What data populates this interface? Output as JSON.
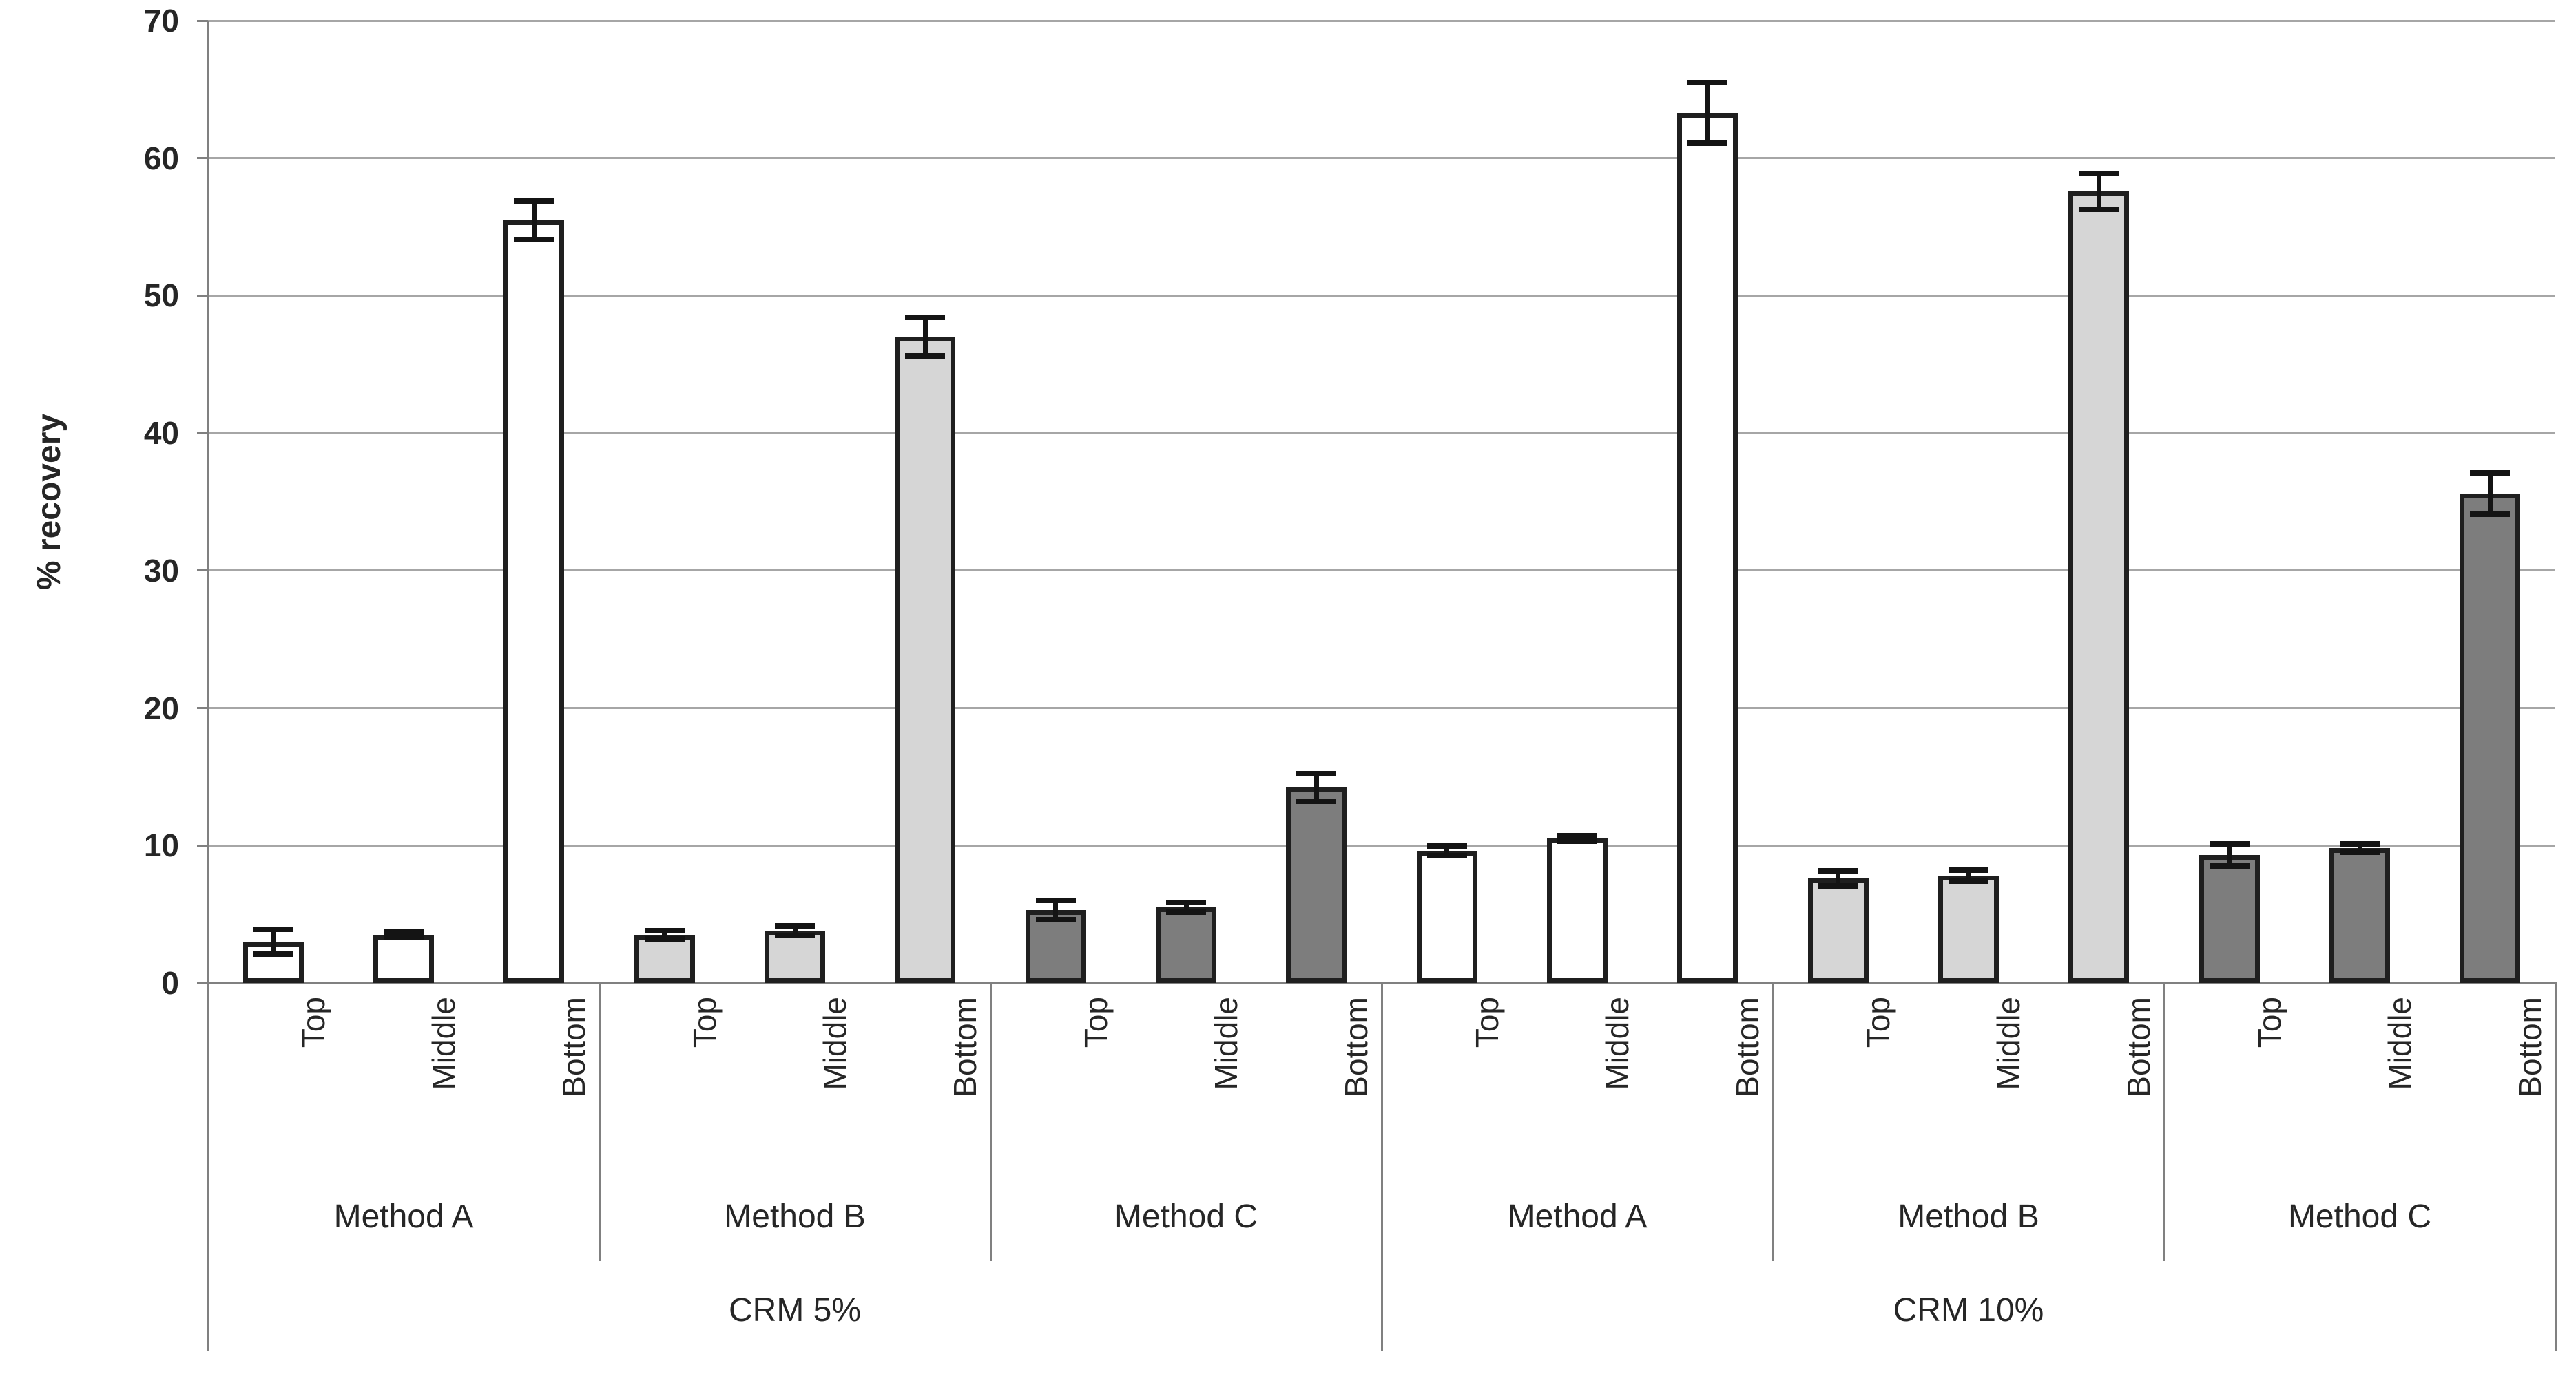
{
  "chart_data": {
    "type": "bar",
    "title": "",
    "xlabel": "",
    "ylabel": "% recovery",
    "ylim": [
      0,
      70
    ],
    "yticks": [
      0,
      10,
      20,
      30,
      40,
      50,
      60,
      70
    ],
    "grid": true,
    "legend_position": "none",
    "axis_levels": [
      "position",
      "method",
      "crm"
    ],
    "position_labels": [
      "Top",
      "Middle",
      "Bottom"
    ],
    "colors": {
      "method_a_fill": "#ffffff",
      "method_b_fill": "#d6d6d6",
      "method_c_fill": "#7d7d7d",
      "bar_border": "#1f1f1f",
      "error_bar": "#141414",
      "gridline": "#a6a6a6",
      "axis": "#808080",
      "text": "#262626"
    },
    "groups": [
      {
        "crm": "CRM 5%",
        "methods": [
          {
            "name": "Method A",
            "fill": "#ffffff",
            "bars": [
              {
                "label": "Top",
                "value": 3.0,
                "error": 0.9
              },
              {
                "label": "Middle",
                "value": 3.5,
                "error": 0.2
              },
              {
                "label": "Bottom",
                "value": 55.5,
                "error": 1.4
              }
            ]
          },
          {
            "name": "Method B",
            "fill": "#d6d6d6",
            "bars": [
              {
                "label": "Top",
                "value": 3.5,
                "error": 0.3
              },
              {
                "label": "Middle",
                "value": 3.8,
                "error": 0.35
              },
              {
                "label": "Bottom",
                "value": 47.0,
                "error": 1.4
              }
            ]
          },
          {
            "name": "Method C",
            "fill": "#7d7d7d",
            "bars": [
              {
                "label": "Top",
                "value": 5.3,
                "error": 0.7
              },
              {
                "label": "Middle",
                "value": 5.5,
                "error": 0.35
              },
              {
                "label": "Bottom",
                "value": 14.2,
                "error": 1.0
              }
            ]
          }
        ]
      },
      {
        "crm": "CRM 10%",
        "methods": [
          {
            "name": "Method A",
            "fill": "#ffffff",
            "bars": [
              {
                "label": "Top",
                "value": 9.6,
                "error": 0.35
              },
              {
                "label": "Middle",
                "value": 10.5,
                "error": 0.2
              },
              {
                "label": "Bottom",
                "value": 63.3,
                "error": 2.2
              }
            ]
          },
          {
            "name": "Method B",
            "fill": "#d6d6d6",
            "bars": [
              {
                "label": "Top",
                "value": 7.6,
                "error": 0.55
              },
              {
                "label": "Middle",
                "value": 7.8,
                "error": 0.4
              },
              {
                "label": "Bottom",
                "value": 57.6,
                "error": 1.3
              }
            ]
          },
          {
            "name": "Method C",
            "fill": "#7d7d7d",
            "bars": [
              {
                "label": "Top",
                "value": 9.3,
                "error": 0.8
              },
              {
                "label": "Middle",
                "value": 9.8,
                "error": 0.3
              },
              {
                "label": "Bottom",
                "value": 35.6,
                "error": 1.5
              }
            ]
          }
        ]
      }
    ]
  }
}
